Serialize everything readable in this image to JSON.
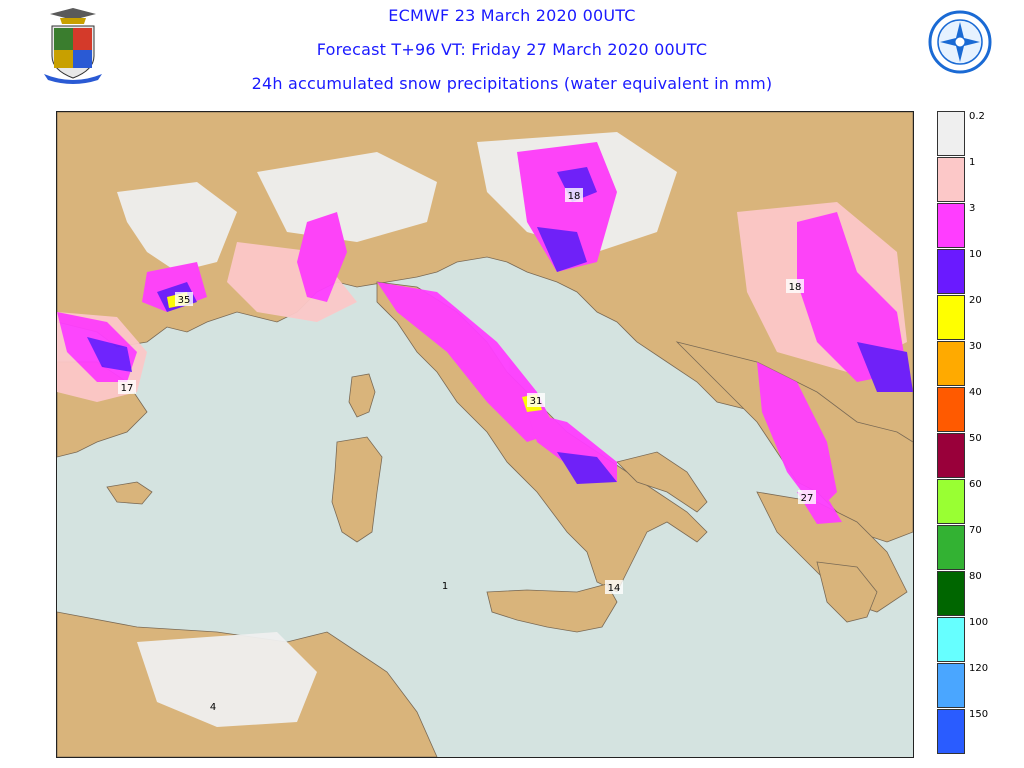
{
  "header": {
    "line1": "ECMWF 23 March 2020 00UTC",
    "line2": "Forecast T+96 VT: Friday 27 March 2020 00UTC",
    "line3": "24h accumulated snow precipitations (water equivalent in mm)"
  },
  "logos": {
    "left": "italian-air-force-crest-icon",
    "right": "meteorological-service-seal-icon"
  },
  "map": {
    "values": [
      {
        "id": "v35",
        "text": "35"
      },
      {
        "id": "v17",
        "text": "17"
      },
      {
        "id": "v18a",
        "text": "18"
      },
      {
        "id": "v18b",
        "text": "18"
      },
      {
        "id": "v31",
        "text": "31"
      },
      {
        "id": "v27",
        "text": "27"
      },
      {
        "id": "v14",
        "text": "14"
      },
      {
        "id": "v1",
        "text": "1"
      },
      {
        "id": "v4",
        "text": "4"
      }
    ],
    "colors": {
      "sea": "#d4e3e0",
      "land": "#d9b47b",
      "border": "#7a6a55"
    }
  },
  "legend": {
    "items": [
      {
        "label": "0.2",
        "color": "#efefef"
      },
      {
        "label": "1",
        "color": "#fcc8c8"
      },
      {
        "label": "3",
        "color": "#ff3dff"
      },
      {
        "label": "10",
        "color": "#6a1aff"
      },
      {
        "label": "20",
        "color": "#ffff00"
      },
      {
        "label": "30",
        "color": "#ffaa00"
      },
      {
        "label": "40",
        "color": "#ff5a00"
      },
      {
        "label": "50",
        "color": "#99003a"
      },
      {
        "label": "60",
        "color": "#99ff33"
      },
      {
        "label": "70",
        "color": "#33b233"
      },
      {
        "label": "80",
        "color": "#006600"
      },
      {
        "label": "100",
        "color": "#66ffff"
      },
      {
        "label": "120",
        "color": "#4aa6ff"
      },
      {
        "label": "150",
        "color": "#2a5cff"
      }
    ]
  }
}
